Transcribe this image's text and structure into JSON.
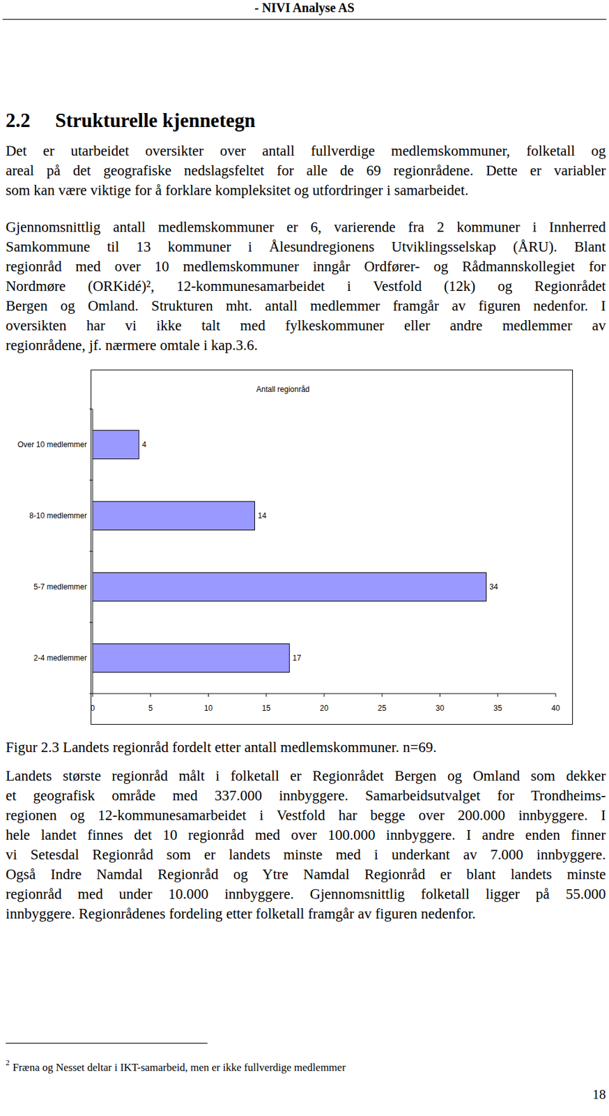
{
  "header": {
    "text": "- NIVI Analyse AS"
  },
  "section": {
    "number": "2.2",
    "title": "Strukturelle kjennetegn"
  },
  "paragraphs_before": [
    {
      "lines": [
        "Det er utarbeidet oversikter over antall fullverdige medlemskommuner, folketall og",
        "areal på det geografiske nedslagsfeltet for alle de 69 regionrådene. Dette er variabler",
        "som kan være viktige for å forklare kompleksitet og utfordringer i samarbeidet."
      ]
    },
    {
      "lines": [
        "Gjennomsnittlig antall medlemskommuner er 6, varierende fra 2 kommuner i Innherred",
        "Samkommune til 13 kommuner i Ålesundregionens Utviklingsselskap (ÅRU). Blant",
        "regionråd med over 10 medlemskommuner inngår Ordfører- og Rådmannskollegiet for",
        "Nordmøre (ORKidé)², 12-kommunesamarbeidet i Vestfold (12k) og Regionrådet",
        "Bergen og Omland. Strukturen mht. antall medlemmer framgår av figuren nedenfor. I",
        "oversikten har vi ikke talt med fylkeskommuner eller andre medlemmer av",
        "regionrådene, jf. nærmere omtale i kap.3.6."
      ]
    }
  ],
  "chart_data": {
    "type": "bar",
    "title": "Antall regionråd",
    "orientation": "horizontal",
    "categories": [
      "Over 10 medlemmer",
      "8-10 medlemmer",
      "5-7 medlemmer",
      "2-4 medlemmer"
    ],
    "values": [
      4,
      14,
      34,
      17
    ],
    "color": "#9999ff",
    "xlim": [
      0,
      40
    ],
    "xticks": [
      0,
      5,
      10,
      15,
      20,
      25,
      30,
      35,
      40
    ],
    "grid": false,
    "data_labels": true
  },
  "caption": "Figur 2.3 Landets regionråd fordelt etter antall medlemskommuner. n=69.",
  "paragraphs_after": [
    {
      "lines": [
        "Landets største regionråd målt i folketall er Regionrådet Bergen og Omland som dekker",
        "et geografisk område med 337.000 innbyggere. Samarbeidsutvalget for Trondheims-",
        "regionen og 12-kommunesamarbeidet i Vestfold har begge over 200.000 innbyggere. I",
        "hele landet finnes det 10 regionråd med over 100.000 innbyggere. I andre enden finner",
        "vi Setesdal Regionråd som er landets minste med i underkant av 7.000 innbyggere.",
        "Også Indre Namdal Regionråd og Ytre Namdal Regionråd er blant landets minste",
        "regionråd med under 10.000 innbyggere. Gjennomsnittlig folketall ligger på 55.000",
        "innbyggere. Regionrådenes fordeling etter folketall framgår av figuren nedenfor."
      ]
    }
  ],
  "footnote": {
    "marker": "2",
    "text": "Fræna og Nesset deltar i IKT-samarbeid, men er ikke fullverdige medlemmer"
  },
  "page_number": "18"
}
